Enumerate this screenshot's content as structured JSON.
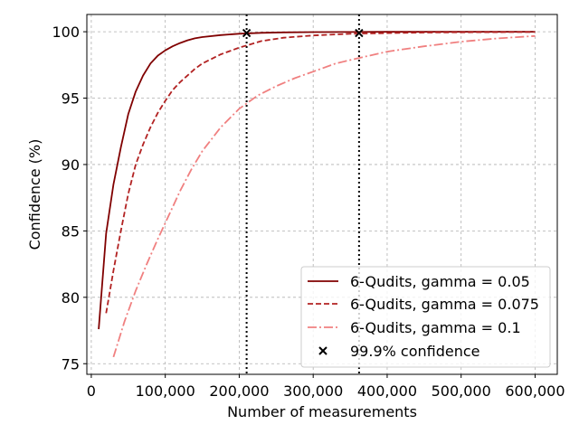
{
  "chart_data": {
    "type": "line",
    "title": "",
    "xlabel": "Number of measurements",
    "ylabel": "Confidence (%)",
    "xlim": [
      -6000,
      630000
    ],
    "ylim": [
      74.2,
      101.3
    ],
    "xticks": [
      0,
      100000,
      200000,
      300000,
      400000,
      500000,
      600000
    ],
    "xtick_labels": [
      "0",
      "100,000",
      "200,000",
      "300,000",
      "400,000",
      "500,000",
      "600,000"
    ],
    "yticks": [
      75,
      80,
      85,
      90,
      95,
      100
    ],
    "ytick_labels": [
      "75",
      "80",
      "85",
      "90",
      "95",
      "100"
    ],
    "grid": true,
    "legend_position": "bottom-right",
    "series": [
      {
        "name": "6-Qudits, gamma = 0.05",
        "color": "#800000",
        "dash": "solid",
        "x": [
          10000,
          20000,
          30000,
          40000,
          50000,
          60000,
          70000,
          80000,
          90000,
          100000,
          110000,
          120000,
          130000,
          140000,
          150000,
          175000,
          200000,
          230000,
          260000,
          300000,
          350000,
          400000,
          500000,
          600000
        ],
        "y": [
          77.6,
          84.8,
          88.5,
          91.3,
          93.8,
          95.5,
          96.7,
          97.6,
          98.2,
          98.6,
          98.9,
          99.15,
          99.35,
          99.5,
          99.6,
          99.75,
          99.85,
          99.92,
          99.95,
          99.97,
          99.98,
          99.99,
          100.0,
          100.0
        ]
      },
      {
        "name": "6-Qudits, gamma = 0.075",
        "color": "#b22222",
        "dash": "dashed",
        "x": [
          20000,
          30000,
          40000,
          50000,
          60000,
          70000,
          80000,
          90000,
          100000,
          110000,
          120000,
          130000,
          140000,
          150000,
          175000,
          200000,
          230000,
          260000,
          300000,
          350000,
          400000,
          450000,
          500000,
          600000
        ],
        "y": [
          78.8,
          82.0,
          85.0,
          87.8,
          90.0,
          91.5,
          92.8,
          93.9,
          94.8,
          95.6,
          96.2,
          96.7,
          97.2,
          97.6,
          98.3,
          98.8,
          99.3,
          99.55,
          99.72,
          99.84,
          99.9,
          99.94,
          99.96,
          99.98
        ]
      },
      {
        "name": "6-Qudits, gamma = 0.1",
        "color": "#f08080",
        "dash": "dashdot",
        "x": [
          30000,
          45000,
          60000,
          75000,
          90000,
          105000,
          120000,
          135000,
          150000,
          175000,
          200000,
          225000,
          250000,
          275000,
          300000,
          330000,
          360000,
          400000,
          450000,
          500000,
          550000,
          600000
        ],
        "y": [
          75.5,
          78.2,
          80.5,
          82.5,
          84.4,
          86.2,
          88.0,
          89.6,
          91.0,
          92.8,
          94.2,
          95.2,
          95.9,
          96.5,
          97.0,
          97.6,
          98.0,
          98.5,
          98.9,
          99.25,
          99.5,
          99.68
        ]
      }
    ],
    "markers": {
      "name": "99.9% confidence",
      "symbol": "x",
      "color": "#000000",
      "points": [
        {
          "x": 210000,
          "y": 99.9
        },
        {
          "x": 362000,
          "y": 99.9
        }
      ]
    },
    "vlines": [
      210000,
      362000
    ]
  }
}
